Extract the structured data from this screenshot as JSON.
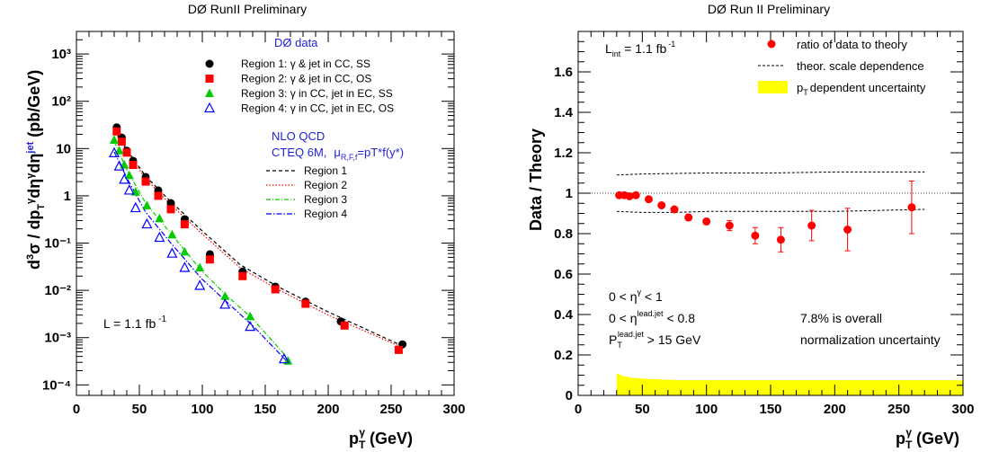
{
  "colors": {
    "region1": "#000000",
    "region2": "#ff0000",
    "region3": "#00cc00",
    "region4": "#0000ff",
    "ratio": "#ff0000",
    "band": "#ffff00",
    "qcd_text": "#1f1fd6"
  },
  "chart_data": [
    {
      "type": "scatter",
      "title": "DØ RunII Preliminary",
      "xlabel": "p_T^γ (GeV)",
      "xlabel_main": "p",
      "xlabel_sub": "T",
      "xlabel_sup": "γ",
      "xlabel_unit": " (GeV)",
      "ylabel": "d³σ / dp_T^γ dη^γ dη^jet (pb/GeV)",
      "xlim": [
        0,
        300
      ],
      "ylim": [
        6e-05,
        3000
      ],
      "yscale": "log",
      "x_ticks": [
        0,
        50,
        100,
        150,
        200,
        250,
        300
      ],
      "x_tick_labels": [
        "0",
        "50",
        "100",
        "150",
        "200",
        "250",
        "300"
      ],
      "y_ticks_exp": [
        -4,
        -3,
        -2,
        -1,
        0,
        1,
        2,
        3
      ],
      "y_tick_labels": [
        "10⁻⁴",
        "10⁻³",
        "10⁻²",
        "10⁻¹",
        "1",
        "10",
        "10²",
        "10³"
      ],
      "legend_title": "DØ data",
      "series": [
        {
          "name": "Region 1: γ & jet in CC, SS",
          "marker": "circle",
          "x": [
            32,
            36,
            40,
            45,
            55,
            65,
            75,
            86,
            106,
            132,
            158,
            182,
            210,
            259
          ],
          "y": [
            28,
            17,
            9,
            5.5,
            2.5,
            1.3,
            0.7,
            0.32,
            0.058,
            0.025,
            0.012,
            0.0058,
            0.0022,
            0.00072
          ]
        },
        {
          "name": "Region 2: γ & jet in CC, OS",
          "marker": "square",
          "x": [
            32,
            36,
            40,
            45,
            55,
            65,
            75,
            86,
            106,
            132,
            158,
            182,
            213,
            256
          ],
          "y": [
            23,
            14,
            8.2,
            4.5,
            2.0,
            1.0,
            0.52,
            0.25,
            0.045,
            0.02,
            0.0105,
            0.0052,
            0.0018,
            0.00055
          ]
        },
        {
          "name": "Region 3: γ in CC, jet in EC, SS",
          "marker": "triangle",
          "x": [
            30,
            34,
            38,
            42,
            47,
            56,
            66,
            76,
            86,
            98,
            118,
            138,
            168
          ],
          "y": [
            15,
            9,
            4.5,
            2.7,
            1.2,
            0.62,
            0.33,
            0.15,
            0.065,
            0.03,
            0.0075,
            0.0028,
            0.00032
          ]
        },
        {
          "name": "Region 4: γ in CC, jet in EC, OS",
          "marker": "open-triangle",
          "x": [
            30,
            34,
            38,
            42,
            47,
            56,
            66,
            76,
            86,
            98,
            118,
            138,
            165
          ],
          "y": [
            8,
            4.2,
            2.2,
            1.3,
            0.55,
            0.25,
            0.13,
            0.06,
            0.03,
            0.0125,
            0.005,
            0.0017,
            0.00035
          ]
        }
      ],
      "theory_title": "NLO QCD",
      "theory_pdf": "CTEQ 6M,",
      "theory_scale": "μR,F,f=pT*f(y*)",
      "theory_scale_main": "μ",
      "theory_scale_sub": "R,F,f",
      "theory_scale_rest": "=pT*f(y*)",
      "theory_curves": [
        {
          "name": "Region 1",
          "style": "dashed",
          "x": [
            30,
            40,
            55,
            75,
            100,
            130,
            160,
            200,
            260
          ],
          "y": [
            26,
            9.5,
            2.6,
            0.75,
            0.18,
            0.035,
            0.012,
            0.0035,
            0.00065
          ]
        },
        {
          "name": "Region 2",
          "style": "dotted",
          "x": [
            30,
            40,
            55,
            75,
            100,
            130,
            160,
            200,
            260
          ],
          "y": [
            24,
            8.8,
            2.3,
            0.65,
            0.155,
            0.03,
            0.0105,
            0.003,
            0.0006
          ]
        },
        {
          "name": "Region 3",
          "style": "dash-dot-green",
          "x": [
            30,
            40,
            55,
            75,
            100,
            120,
            140,
            170
          ],
          "y": [
            14,
            3.6,
            0.7,
            0.16,
            0.025,
            0.0075,
            0.0025,
            0.00032
          ]
        },
        {
          "name": "Region 4",
          "style": "dash-dot-blue",
          "x": [
            30,
            40,
            55,
            75,
            100,
            120,
            140,
            168
          ],
          "y": [
            8.5,
            2.4,
            0.45,
            0.1,
            0.017,
            0.0055,
            0.0018,
            0.0003
          ]
        }
      ],
      "luminosity": "L = 1.1 fb",
      "luminosity_exp": "-1"
    },
    {
      "type": "scatter",
      "title": "DØ Run II Preliminary",
      "xlabel": "p_T^γ (GeV)",
      "xlabel_main": "p",
      "xlabel_sub": "T",
      "xlabel_sup": "γ",
      "xlabel_unit": " (GeV)",
      "ylabel": "Data / Theory",
      "xlim": [
        0,
        300
      ],
      "ylim": [
        0,
        1.8
      ],
      "x_ticks": [
        0,
        50,
        100,
        150,
        200,
        250,
        300
      ],
      "x_tick_labels": [
        "0",
        "50",
        "100",
        "150",
        "200",
        "250",
        "300"
      ],
      "y_ticks": [
        0,
        0.2,
        0.4,
        0.6,
        0.8,
        1.0,
        1.2,
        1.4,
        1.6
      ],
      "y_tick_labels": [
        "0",
        "0.2",
        "0.4",
        "0.6",
        "0.8",
        "1",
        "1.2",
        "1.4",
        "1.6"
      ],
      "reference_line": 1.0,
      "legend": {
        "ratio": "ratio of data to theory",
        "scale": "theor. scale dependence",
        "band": "dependent uncertainty",
        "band_p": "p",
        "band_sub": "T"
      },
      "series": [
        {
          "name": "ratio of data to theory",
          "x": [
            32,
            36,
            40,
            45,
            55,
            65,
            75,
            86,
            100,
            118,
            138,
            158,
            182,
            210,
            260
          ],
          "y": [
            0.99,
            0.99,
            0.985,
            0.99,
            0.97,
            0.94,
            0.92,
            0.88,
            0.86,
            0.84,
            0.79,
            0.77,
            0.84,
            0.82,
            0.93
          ],
          "err": [
            0.01,
            0.01,
            0.01,
            0.01,
            0.01,
            0.01,
            0.01,
            0.015,
            0.015,
            0.025,
            0.04,
            0.06,
            0.075,
            0.105,
            0.13
          ]
        }
      ],
      "scale_upper": {
        "x": [
          30,
          50,
          75,
          100,
          150,
          200,
          270
        ],
        "y": [
          1.09,
          1.095,
          1.098,
          1.1,
          1.1,
          1.105,
          1.105
        ]
      },
      "scale_lower": {
        "x": [
          30,
          50,
          75,
          100,
          150,
          200,
          270
        ],
        "y": [
          0.91,
          0.905,
          0.905,
          0.91,
          0.91,
          0.91,
          0.92
        ]
      },
      "band_profile": {
        "x": [
          30,
          35,
          45,
          60,
          80,
          120,
          200,
          300
        ],
        "y": [
          0.11,
          0.095,
          0.085,
          0.08,
          0.075,
          0.075,
          0.075,
          0.075
        ]
      },
      "luminosity": "L",
      "luminosity_sub": "int",
      "luminosity_rest": " = 1.1 fb",
      "luminosity_exp": "-1",
      "cuts": [
        {
          "pre": "0 < η",
          "sup": "γ",
          "post": " < 1"
        },
        {
          "pre": "0 < η",
          "sup": "lead.jet",
          "post": " < 0.8"
        },
        {
          "pre": "P",
          "sub": "T",
          "sup": "lead.jet",
          "post": " > 15 GeV"
        }
      ],
      "note_line1": "7.8% is overall",
      "note_line2": "normalization uncertainty"
    }
  ]
}
